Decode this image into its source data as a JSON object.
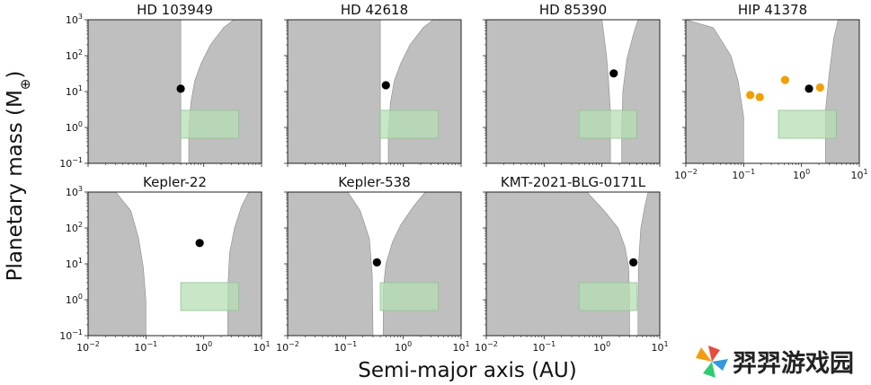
{
  "chart_data": {
    "type": "scatter",
    "xlabel": "Semi-major axis (AU)",
    "ylabel_main": "Planetary mass (M",
    "ylabel_sym": "⊕",
    "ylabel_end": ")",
    "xscale": "log",
    "yscale": "log",
    "xlim": [
      0.01,
      10
    ],
    "ylim": [
      0.1,
      1000
    ],
    "xticks": [
      {
        "base": "10",
        "exp": "−2"
      },
      {
        "base": "10",
        "exp": "−1"
      },
      {
        "base": "10",
        "exp": "0"
      },
      {
        "base": "10",
        "exp": "1"
      }
    ],
    "yticks": [
      {
        "base": "10",
        "exp": "−1"
      },
      {
        "base": "10",
        "exp": "0"
      },
      {
        "base": "10",
        "exp": "1"
      },
      {
        "base": "10",
        "exp": "2"
      },
      {
        "base": "10",
        "exp": "3"
      }
    ],
    "colors": {
      "excluded_region": "#bfbfbf",
      "target_box_fill": "#b4dfb4",
      "target_box_edge": "#8fc48f",
      "planet_black": "#000000",
      "planet_orange": "#f0a000"
    },
    "target_box": {
      "x": [
        0.4,
        4.0
      ],
      "y": [
        0.5,
        3.0
      ]
    },
    "panels": [
      {
        "title": "HD 103949",
        "left_edge": [
          [
            0.4,
            1000
          ],
          [
            0.4,
            0.1
          ]
        ],
        "right_edge": [
          [
            0.55,
            0.1
          ],
          [
            0.55,
            0.8
          ],
          [
            0.6,
            5
          ],
          [
            0.7,
            20
          ],
          [
            0.9,
            60
          ],
          [
            1.3,
            200
          ],
          [
            2.2,
            600
          ],
          [
            3.3,
            1000
          ]
        ],
        "points": [
          {
            "x": 0.4,
            "y": 12,
            "color": "planet_black"
          }
        ]
      },
      {
        "title": "HD 42618",
        "left_edge": [
          [
            0.4,
            1000
          ],
          [
            0.4,
            0.1
          ]
        ],
        "right_edge": [
          [
            0.55,
            0.1
          ],
          [
            0.55,
            0.8
          ],
          [
            0.6,
            5
          ],
          [
            0.7,
            20
          ],
          [
            0.9,
            60
          ],
          [
            1.3,
            200
          ],
          [
            2.2,
            600
          ],
          [
            3.3,
            1000
          ]
        ],
        "points": [
          {
            "x": 0.5,
            "y": 15,
            "color": "planet_black"
          }
        ]
      },
      {
        "title": "HD 85390",
        "left_edge": [
          [
            1.0,
            1000
          ],
          [
            1.2,
            100
          ],
          [
            1.3,
            20
          ],
          [
            1.4,
            3
          ],
          [
            1.4,
            0.1
          ]
        ],
        "right_edge": [
          [
            2.2,
            0.1
          ],
          [
            2.2,
            1
          ],
          [
            2.3,
            10
          ],
          [
            2.7,
            80
          ],
          [
            3.5,
            400
          ],
          [
            4.2,
            1000
          ]
        ],
        "points": [
          {
            "x": 1.6,
            "y": 32,
            "color": "planet_black"
          }
        ]
      },
      {
        "title": "HIP 41378",
        "left_edge": [
          [
            0.01,
            1000
          ],
          [
            0.03,
            600
          ],
          [
            0.06,
            100
          ],
          [
            0.08,
            20
          ],
          [
            0.1,
            2
          ],
          [
            0.1,
            0.1
          ]
        ],
        "right_edge": [
          [
            2.6,
            0.1
          ],
          [
            2.6,
            3
          ],
          [
            3,
            30
          ],
          [
            3.6,
            300
          ],
          [
            4.3,
            1000
          ]
        ],
        "points": [
          {
            "x": 0.13,
            "y": 8,
            "color": "planet_orange"
          },
          {
            "x": 0.19,
            "y": 7,
            "color": "planet_orange"
          },
          {
            "x": 0.52,
            "y": 21,
            "color": "planet_orange"
          },
          {
            "x": 1.35,
            "y": 12,
            "color": "planet_black"
          },
          {
            "x": 2.1,
            "y": 13,
            "color": "planet_orange"
          }
        ]
      },
      {
        "title": "Kepler-22",
        "left_edge": [
          [
            0.03,
            1000
          ],
          [
            0.055,
            300
          ],
          [
            0.075,
            50
          ],
          [
            0.09,
            8
          ],
          [
            0.1,
            1
          ],
          [
            0.1,
            0.1
          ]
        ],
        "right_edge": [
          [
            2.6,
            0.1
          ],
          [
            2.6,
            2
          ],
          [
            2.8,
            20
          ],
          [
            3.4,
            100
          ],
          [
            4.5,
            400
          ],
          [
            6,
            1000
          ]
        ],
        "points": [
          {
            "x": 0.85,
            "y": 38,
            "color": "planet_black"
          }
        ]
      },
      {
        "title": "Kepler-538",
        "left_edge": [
          [
            0.11,
            1000
          ],
          [
            0.18,
            300
          ],
          [
            0.26,
            50
          ],
          [
            0.29,
            5
          ],
          [
            0.3,
            0.1
          ]
        ],
        "right_edge": [
          [
            0.45,
            0.1
          ],
          [
            0.45,
            2
          ],
          [
            0.5,
            10
          ],
          [
            0.65,
            40
          ],
          [
            0.9,
            120
          ],
          [
            1.5,
            400
          ],
          [
            2.4,
            1000
          ]
        ],
        "points": [
          {
            "x": 0.35,
            "y": 11,
            "color": "planet_black"
          }
        ]
      },
      {
        "title": "KMT-2021-BLG-0171L",
        "left_edge": [
          [
            0.55,
            1000
          ],
          [
            1.1,
            300
          ],
          [
            1.9,
            100
          ],
          [
            2.5,
            30
          ],
          [
            2.9,
            8
          ],
          [
            3.0,
            1
          ],
          [
            3.0,
            0.1
          ]
        ],
        "right_edge": [
          [
            4.2,
            0.1
          ],
          [
            4.2,
            1
          ],
          [
            4.3,
            10
          ],
          [
            4.7,
            100
          ],
          [
            5.5,
            400
          ],
          [
            6.3,
            1000
          ]
        ],
        "points": [
          {
            "x": 3.5,
            "y": 11,
            "color": "planet_black"
          }
        ]
      }
    ]
  },
  "watermark": {
    "text": "羿羿游戏园"
  }
}
